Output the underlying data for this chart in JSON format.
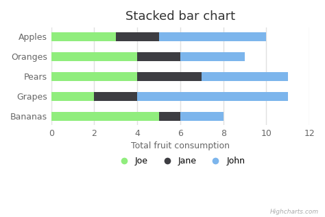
{
  "title": "Stacked bar chart",
  "categories": [
    "Apples",
    "Oranges",
    "Pears",
    "Grapes",
    "Bananas"
  ],
  "series": [
    {
      "name": "Joe",
      "values": [
        3,
        4,
        4,
        2,
        5
      ],
      "color": "#90ed7d"
    },
    {
      "name": "Jane",
      "values": [
        2,
        2,
        3,
        2,
        1
      ],
      "color": "#3d3d42"
    },
    {
      "name": "John",
      "values": [
        5,
        3,
        4,
        7,
        2
      ],
      "color": "#7cb5ec"
    }
  ],
  "xlabel": "Total fruit consumption",
  "xlim": [
    0,
    12
  ],
  "xticks": [
    0,
    2,
    4,
    6,
    8,
    10,
    12
  ],
  "bg_color": "#ffffff",
  "plot_bg_color": "#ffffff",
  "grid_color": "#e0e0e0",
  "title_fontsize": 13,
  "axis_fontsize": 9,
  "legend_fontsize": 9,
  "bar_height": 0.45,
  "watermark": "Highcharts.com"
}
